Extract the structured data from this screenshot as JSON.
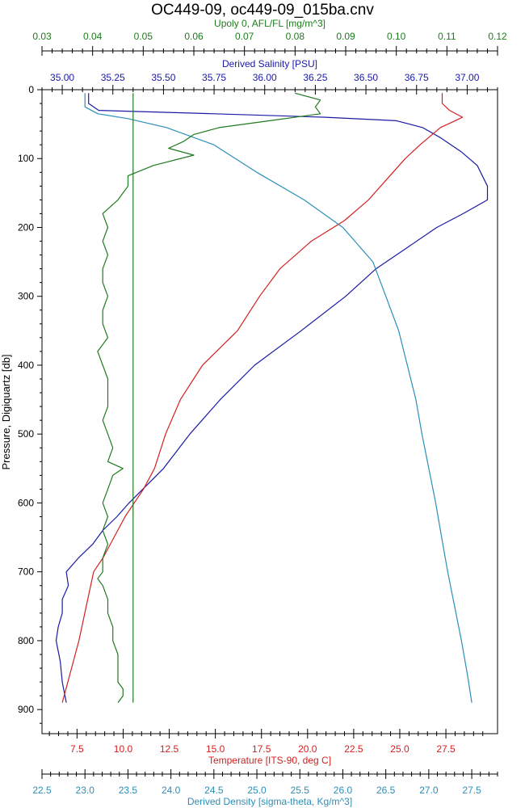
{
  "chart_data": {
    "type": "line",
    "title": "OC449-09, oc449-09_015ba.cnv",
    "colors": {
      "salinity": "#1a1aa6",
      "temperature": "#d42020",
      "fluorescence": "#1f7a1f",
      "density": "#2b8fb8",
      "axis": "#000000"
    },
    "grid": false,
    "y_axis": {
      "label": "Pressure, Digiquartz [db]",
      "range": [
        0,
        935
      ],
      "reversed": true,
      "ticks": [
        0,
        100,
        200,
        300,
        400,
        500,
        600,
        700,
        800,
        900
      ]
    },
    "x_axes": {
      "fluorescence": {
        "label": "Upoly 0, AFL/FL [mg/m^3]",
        "range": [
          0.03,
          0.12
        ],
        "ticks": [
          "0.03",
          "0.04",
          "0.05",
          "0.06",
          "0.07",
          "0.08",
          "0.09",
          "0.10",
          "0.11",
          "0.12"
        ]
      },
      "salinity": {
        "label": "Derived Salinity [PSU]",
        "range": [
          34.9,
          37.15
        ],
        "ticks": [
          "35.00",
          "35.25",
          "35.50",
          "35.75",
          "36.00",
          "36.25",
          "36.50",
          "36.75",
          "37.00"
        ]
      },
      "temperature": {
        "label": "Temperature [ITS-90, deg C]",
        "range": [
          5.6,
          30.3
        ],
        "ticks": [
          "7.5",
          "10.0",
          "12.5",
          "15.0",
          "17.5",
          "20.0",
          "22.5",
          "25.0",
          "27.5"
        ]
      },
      "density": {
        "label": "Derived Density [sigma-theta, Kg/m^3]",
        "range": [
          22.5,
          27.8
        ],
        "ticks": [
          "22.5",
          "23.0",
          "23.5",
          "24.0",
          "24.5",
          "25.0",
          "25.5",
          "26.0",
          "26.5",
          "27.0",
          "27.5"
        ]
      }
    },
    "series": [
      {
        "key": "salinity",
        "name": "Derived Salinity [PSU]",
        "pressure": [
          5,
          20,
          30,
          35,
          40,
          45,
          55,
          70,
          90,
          110,
          140,
          160,
          180,
          200,
          230,
          260,
          300,
          350,
          400,
          450,
          500,
          550,
          600,
          620,
          640,
          660,
          680,
          700,
          720,
          740,
          760,
          780,
          800,
          830,
          860,
          890
        ],
        "values": [
          35.13,
          35.13,
          35.18,
          35.75,
          36.3,
          36.65,
          36.78,
          36.87,
          36.97,
          37.05,
          37.1,
          37.1,
          36.98,
          36.85,
          36.7,
          36.55,
          36.4,
          36.18,
          35.95,
          35.78,
          35.63,
          35.5,
          35.33,
          35.27,
          35.2,
          35.15,
          35.08,
          35.02,
          35.03,
          35.0,
          35.0,
          34.98,
          34.97,
          34.99,
          35.0,
          35.02
        ]
      },
      {
        "key": "temperature",
        "name": "Temperature [ITS-90, deg C]",
        "pressure": [
          5,
          20,
          30,
          40,
          45,
          55,
          80,
          100,
          130,
          160,
          190,
          220,
          260,
          300,
          350,
          400,
          450,
          500,
          550,
          580,
          600,
          620,
          650,
          680,
          700,
          750,
          800,
          850,
          890
        ],
        "values": [
          27.3,
          27.3,
          27.7,
          28.4,
          28.0,
          27.2,
          26.1,
          25.3,
          24.3,
          23.3,
          22.0,
          20.2,
          18.5,
          17.4,
          16.2,
          14.3,
          13.1,
          12.3,
          11.7,
          11.1,
          10.6,
          10.1,
          9.5,
          8.9,
          8.4,
          8.0,
          7.6,
          7.1,
          6.7
        ]
      },
      {
        "key": "density",
        "name": "Derived Density [sigma-theta, Kg/m^3]",
        "pressure": [
          5,
          25,
          35,
          42,
          55,
          80,
          120,
          160,
          200,
          250,
          300,
          350,
          400,
          450,
          500,
          550,
          600,
          650,
          700,
          750,
          800,
          850,
          890
        ],
        "values": [
          23.0,
          23.0,
          23.15,
          23.5,
          23.95,
          24.5,
          25.0,
          25.55,
          26.0,
          26.35,
          26.5,
          26.65,
          26.75,
          26.85,
          26.92,
          27.0,
          27.08,
          27.15,
          27.22,
          27.3,
          27.38,
          27.45,
          27.5
        ]
      },
      {
        "key": "fluorescence",
        "name": "Upoly 0, AFL/FL [mg/m^3]",
        "pressure": [
          5,
          15,
          25,
          35,
          45,
          55,
          65,
          75,
          85,
          95,
          110,
          125,
          140,
          160,
          180,
          200,
          220,
          240,
          260,
          280,
          300,
          320,
          340,
          360,
          380,
          400,
          420,
          440,
          460,
          480,
          500,
          520,
          540,
          550,
          560,
          580,
          600,
          620,
          640,
          660,
          680,
          700,
          710,
          720,
          740,
          760,
          780,
          800,
          820,
          840,
          850,
          860,
          870,
          880,
          890
        ],
        "values": [
          0.08,
          0.085,
          0.084,
          0.085,
          0.075,
          0.065,
          0.06,
          0.058,
          0.055,
          0.06,
          0.052,
          0.047,
          0.047,
          0.045,
          0.042,
          0.043,
          0.042,
          0.043,
          0.042,
          0.042,
          0.043,
          0.042,
          0.042,
          0.043,
          0.041,
          0.042,
          0.043,
          0.043,
          0.043,
          0.042,
          0.043,
          0.044,
          0.043,
          0.046,
          0.044,
          0.043,
          0.042,
          0.043,
          0.042,
          0.043,
          0.042,
          0.042,
          0.041,
          0.042,
          0.043,
          0.043,
          0.044,
          0.044,
          0.045,
          0.045,
          0.045,
          0.045,
          0.046,
          0.046,
          0.045
        ]
      },
      {
        "key": "fluorescence_flat",
        "name": "Upoly 0, AFL/FL [mg/m^3]",
        "pressure": [
          5,
          100,
          200,
          300,
          400,
          500,
          600,
          700,
          800,
          890
        ],
        "values": [
          0.048,
          0.048,
          0.048,
          0.048,
          0.048,
          0.048,
          0.048,
          0.048,
          0.048,
          0.048
        ]
      }
    ]
  }
}
